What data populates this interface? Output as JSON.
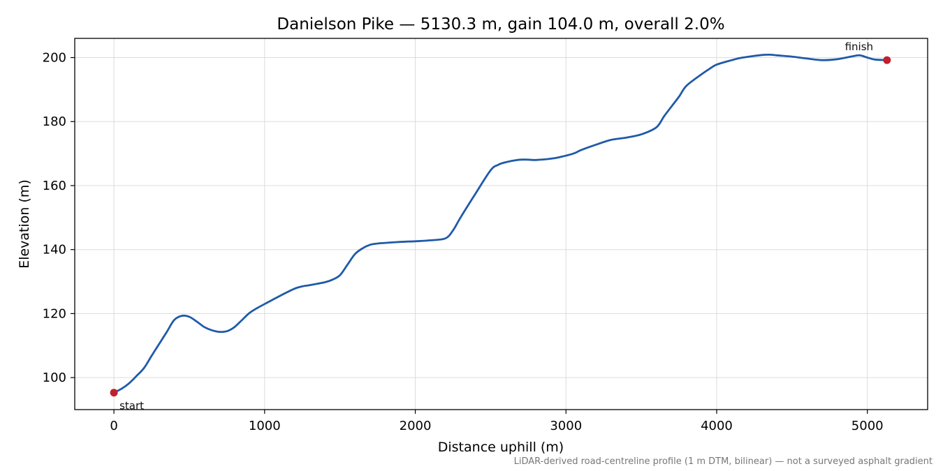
{
  "chart_data": {
    "type": "line",
    "title": "Danielson Pike — 5130.3 m, gain 104.0 m, overall 2.0%",
    "xlabel": "Distance uphill (m)",
    "ylabel": "Elevation (m)",
    "xlim": [
      -260,
      5400
    ],
    "ylim": [
      90,
      206
    ],
    "xticks": [
      0,
      1000,
      2000,
      3000,
      4000,
      5000
    ],
    "yticks": [
      100,
      120,
      140,
      160,
      180,
      200
    ],
    "grid": true,
    "line_color": "#1f5aa8",
    "marker_color": "#c0202e",
    "series": [
      {
        "x": [
          0,
          50,
          100,
          150,
          200,
          250,
          300,
          350,
          400,
          450,
          500,
          550,
          600,
          650,
          700,
          750,
          800,
          850,
          900,
          950,
          1000,
          1100,
          1200,
          1250,
          1300,
          1400,
          1450,
          1500,
          1550,
          1600,
          1650,
          1700,
          1750,
          1800,
          1900,
          2000,
          2100,
          2200,
          2250,
          2300,
          2400,
          2500,
          2550,
          2600,
          2650,
          2700,
          2750,
          2800,
          2900,
          2950,
          3050,
          3100,
          3200,
          3300,
          3400,
          3500,
          3600,
          3650,
          3700,
          3750,
          3800,
          3900,
          3950,
          4000,
          4100,
          4150,
          4200,
          4300,
          4350,
          4400,
          4500,
          4600,
          4700,
          4800,
          4900,
          4950,
          5000,
          5050,
          5130.3
        ],
        "y": [
          95.3,
          96.5,
          98.2,
          100.5,
          103,
          106.8,
          110.5,
          114.2,
          118,
          119.3,
          119,
          117.5,
          115.8,
          114.8,
          114.3,
          114.5,
          115.8,
          118,
          120.2,
          121.7,
          123,
          125.5,
          127.8,
          128.5,
          128.9,
          129.8,
          130.6,
          132,
          135.3,
          138.6,
          140.4,
          141.5,
          141.9,
          142.1,
          142.4,
          142.6,
          142.9,
          143.5,
          146,
          150,
          157.5,
          164.8,
          166.5,
          167.3,
          167.8,
          168.1,
          168.1,
          168,
          168.4,
          168.8,
          170,
          171.1,
          172.8,
          174.3,
          175,
          176,
          178.2,
          181.6,
          184.7,
          187.8,
          191.2,
          194.8,
          196.4,
          197.8,
          199.2,
          199.8,
          200.2,
          200.8,
          200.9,
          200.7,
          200.3,
          199.7,
          199.2,
          199.5,
          200.4,
          200.7,
          200,
          199.4,
          199.2
        ]
      }
    ],
    "annotations": [
      {
        "text": "start",
        "x": 0,
        "y": 95.3
      },
      {
        "text": "finish",
        "x": 5130.3,
        "y": 199.2
      }
    ],
    "footnote": "LiDAR-derived road-centreline profile (1 m DTM, bilinear) — not a surveyed asphalt gradient"
  }
}
